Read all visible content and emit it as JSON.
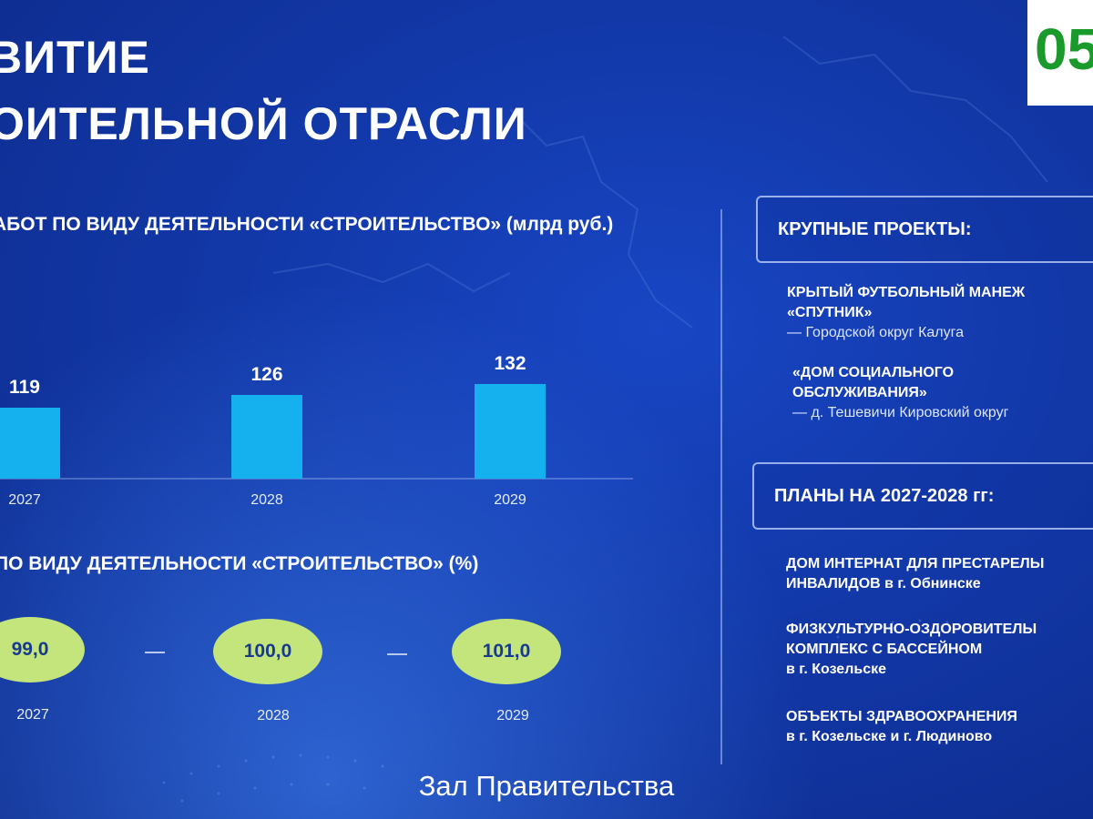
{
  "header": {
    "title_line1": "ВИТИЕ",
    "title_line2": "ОИТЕЛЬНОЙ ОТРАСЛИ",
    "counter": "05"
  },
  "chart1": {
    "title": "АБОТ ПО ВИДУ ДЕЯТЕЛЬНОСТИ «СТРОИТЕЛЬСТВО» (млрд руб.)"
  },
  "chart2": {
    "title": "ПО ВИДУ ДЕЯТЕЛЬНОСТИ «СТРОИТЕЛЬСТВО» (%)",
    "items": [
      {
        "value": "99,0",
        "year": "2027"
      },
      {
        "value": "100,0",
        "year": "2028"
      },
      {
        "value": "101,0",
        "year": "2029"
      }
    ],
    "pill_color": "#c3e57c"
  },
  "chart_data": [
    {
      "type": "bar",
      "title": "АБОТ ПО ВИДУ ДЕЯТЕЛЬНОСТИ «СТРОИТЕЛЬСТВО» (млрд руб.)",
      "categories": [
        "2027",
        "2028",
        "2029"
      ],
      "values": [
        119,
        126,
        132
      ],
      "value_labels": [
        "119",
        "126",
        "132"
      ],
      "unit": "млрд руб.",
      "bar_color": "#15b1ee",
      "grid": false,
      "legend": "none"
    },
    {
      "type": "table",
      "title": "ПО ВИДУ ДЕЯТЕЛЬНОСТИ «СТРОИТЕЛЬСТВО» (%)",
      "categories": [
        "2027",
        "2028",
        "2029"
      ],
      "values": [
        99.0,
        100.0,
        101.0
      ],
      "unit": "%"
    }
  ],
  "projects": {
    "heading": "КРУПНЫЕ ПРОЕКТЫ:",
    "items": [
      {
        "name_line1": "КРЫТЫЙ ФУТБОЛЬНЫЙ МАНЕЖ",
        "name_line2": "«СПУТНИК»",
        "location": "— Городской округ Калуга"
      },
      {
        "name_line1": "«ДОМ СОЦИАЛЬНОГО",
        "name_line2": "ОБСЛУЖИВАНИЯ»",
        "location": "— д. Тешевичи Кировский округ"
      }
    ]
  },
  "plans": {
    "heading": "ПЛАНЫ НА 2027-2028 гг:",
    "items": [
      {
        "line1": "ДОМ ИНТЕРНАТ ДЛЯ ПРЕСТАРЕЛЫ",
        "line2": "ИНВАЛИДОВ в г. Обнинске",
        "line3": ""
      },
      {
        "line1": "ФИЗКУЛЬТУРНО-ОЗДОРОВИТЕЛЫ",
        "line2": "КОМПЛЕКС С БАССЕЙНОМ",
        "line3": "в г. Козельске"
      },
      {
        "line1": "ОБЪЕКТЫ ЗДРАВООХРАНЕНИЯ",
        "line2": "в г. Козельске и г. Людиново",
        "line3": ""
      }
    ]
  },
  "caption": "Зал Правительства"
}
